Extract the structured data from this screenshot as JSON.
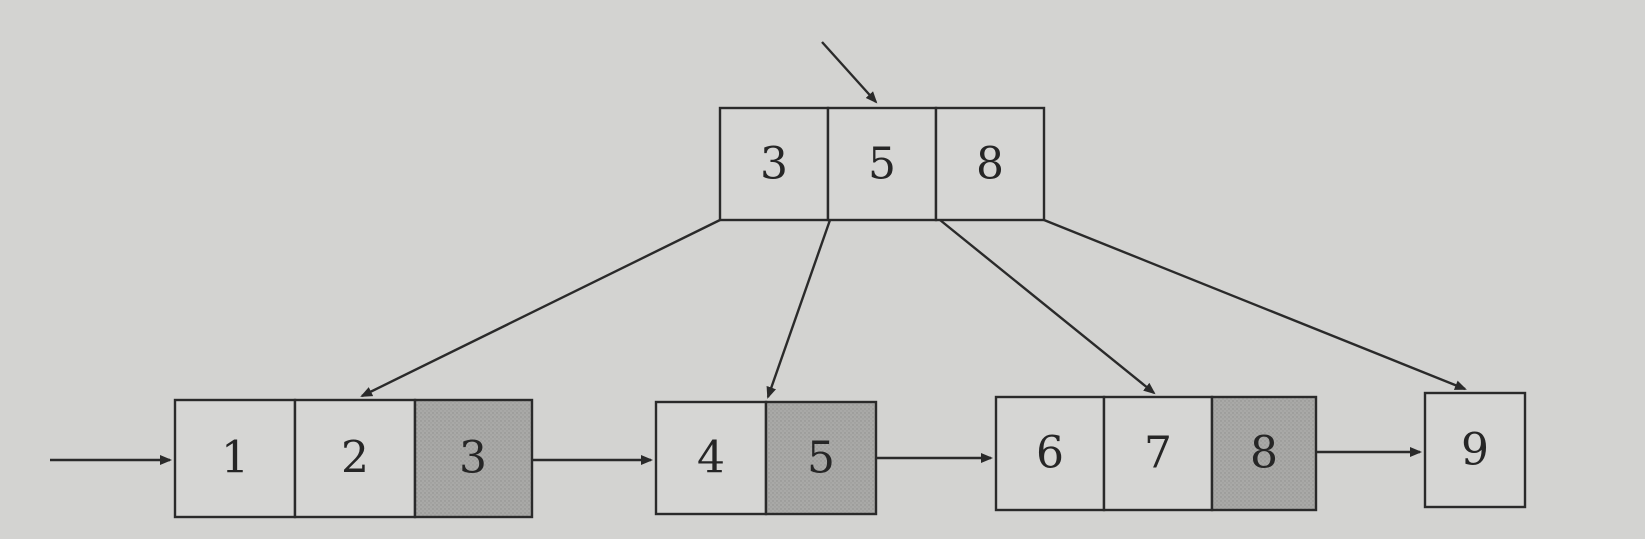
{
  "diagram": {
    "colors": {
      "background": "#d3d3d1",
      "paper": "#d8d8d6",
      "cell_fill": "#d6d6d4",
      "highlight_fill": "#a9a9a7",
      "stroke": "#2a2a2a",
      "text": "#262626"
    },
    "root_node": {
      "keys": [
        "3",
        "5",
        "8"
      ]
    },
    "leaf_nodes": [
      {
        "keys": [
          "1",
          "2",
          "3"
        ],
        "highlighted": [
          "3"
        ]
      },
      {
        "keys": [
          "4",
          "5"
        ],
        "highlighted": [
          "5"
        ]
      },
      {
        "keys": [
          "6",
          "7",
          "8"
        ],
        "highlighted": [
          "8"
        ]
      },
      {
        "keys": [
          "9"
        ],
        "highlighted": []
      }
    ]
  }
}
